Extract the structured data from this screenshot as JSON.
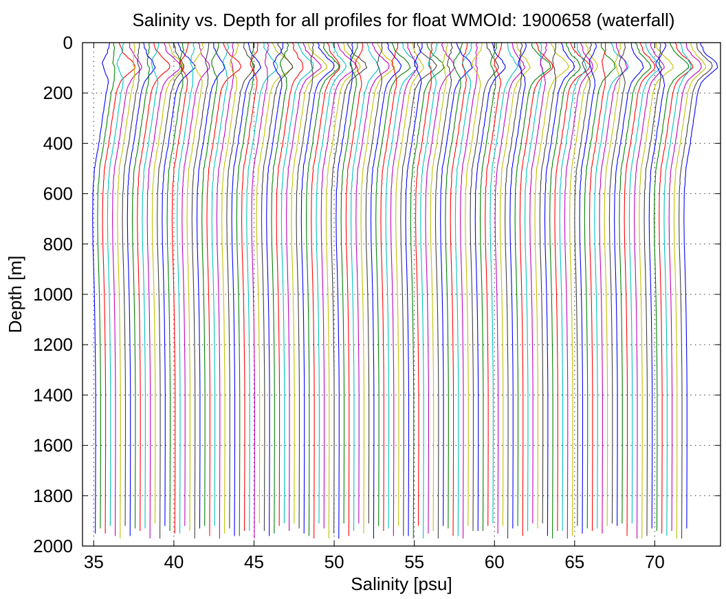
{
  "chart_data": {
    "type": "line",
    "title": "Salinity vs. Depth for all profiles for float WMOId: 1900658 (waterfall)",
    "xlabel": "Salinity [psu]",
    "ylabel": "Depth [m]",
    "xlim": [
      34.3,
      74.1
    ],
    "ylim": [
      0,
      2000
    ],
    "y_reversed": true,
    "grid": "dotted",
    "legend": "none",
    "x_ticks": [
      "35",
      "40",
      "45",
      "50",
      "55",
      "60",
      "65",
      "70"
    ],
    "y_ticks": [
      "0",
      "200",
      "400",
      "600",
      "800",
      "1000",
      "1200",
      "1400",
      "1600",
      "1800",
      "2000"
    ],
    "colors": [
      "#0000ff",
      "#008000",
      "#ff0000",
      "#00bfbf",
      "#bf00bf",
      "#bfbf00",
      "#404040"
    ],
    "waterfall": {
      "profile_count": 120,
      "first_profile_deep_salinity": 35.1,
      "offset_per_profile_psu": 0.31,
      "base_profile": [
        {
          "depth": 0,
          "salinity": 35.95
        },
        {
          "depth": 50,
          "salinity": 36.05
        },
        {
          "depth": 100,
          "salinity": 36.3
        },
        {
          "depth": 150,
          "salinity": 36.0
        },
        {
          "depth": 200,
          "salinity": 35.78
        },
        {
          "depth": 300,
          "salinity": 35.55
        },
        {
          "depth": 400,
          "salinity": 35.32
        },
        {
          "depth": 500,
          "salinity": 35.05
        },
        {
          "depth": 600,
          "salinity": 34.95
        },
        {
          "depth": 700,
          "salinity": 34.93
        },
        {
          "depth": 800,
          "salinity": 34.95
        },
        {
          "depth": 900,
          "salinity": 35.0
        },
        {
          "depth": 1000,
          "salinity": 35.04
        },
        {
          "depth": 1100,
          "salinity": 35.07
        },
        {
          "depth": 1200,
          "salinity": 35.09
        },
        {
          "depth": 1300,
          "salinity": 35.11
        },
        {
          "depth": 1400,
          "salinity": 35.12
        },
        {
          "depth": 1600,
          "salinity": 35.12
        },
        {
          "depth": 1800,
          "salinity": 35.11
        },
        {
          "depth": 1950,
          "salinity": 35.1
        }
      ]
    }
  }
}
